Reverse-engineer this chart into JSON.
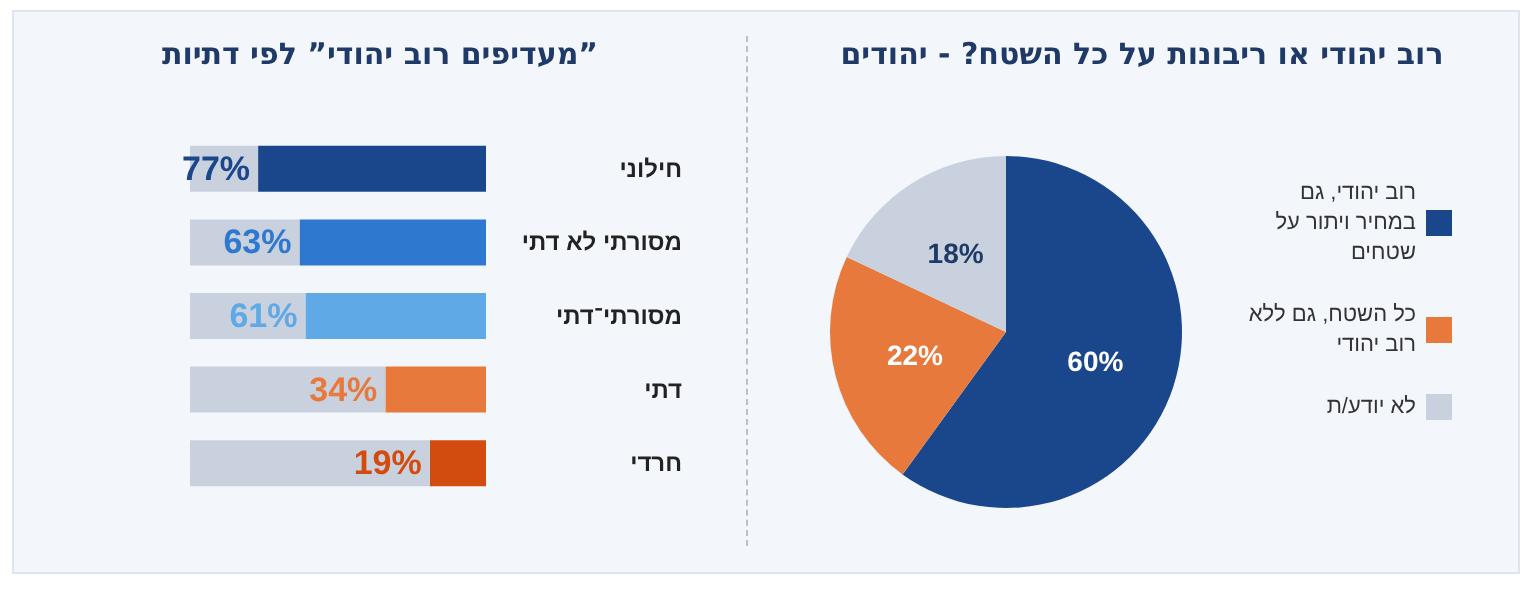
{
  "chart_data": [
    {
      "type": "pie",
      "title": "רוב יהודי או ריבונות על כל השטח? - יהודים",
      "categories": [
        "רוב יהודי, גם במחיר ויתור על שטחים",
        "כל השטח, גם ללא רוב יהודי",
        "לא יודע/ת"
      ],
      "values": [
        60,
        22,
        18
      ],
      "colors": [
        "#1a478c",
        "#e8793c",
        "#c8d1dd"
      ],
      "value_labels": [
        "60%",
        "22%",
        "18%"
      ],
      "legend": "right"
    },
    {
      "type": "bar",
      "title": "”מעדיפים רוב יהודי” לפי דתיות",
      "orientation": "horizontal",
      "stacked": true,
      "categories": [
        "חילוני",
        "מסורתי לא דתי",
        "מסורתי־דתי",
        "דתי",
        "חרדי"
      ],
      "xlim": [
        100,
        0
      ],
      "tick_labels": "y",
      "series": [
        {
          "color": "#1a478c",
          "colors": [
            "#1a478c",
            "#2e78d0",
            "#5ea9e6",
            "#e8793c",
            "#d24c10"
          ],
          "values": [
            77,
            63,
            61,
            34,
            19
          ],
          "value_labels": [
            "77%",
            "63%",
            "61%",
            "34%",
            "19%"
          ]
        },
        {
          "color": "#c8d1dd",
          "values": [
            23,
            37,
            39,
            66,
            81
          ]
        }
      ]
    }
  ]
}
